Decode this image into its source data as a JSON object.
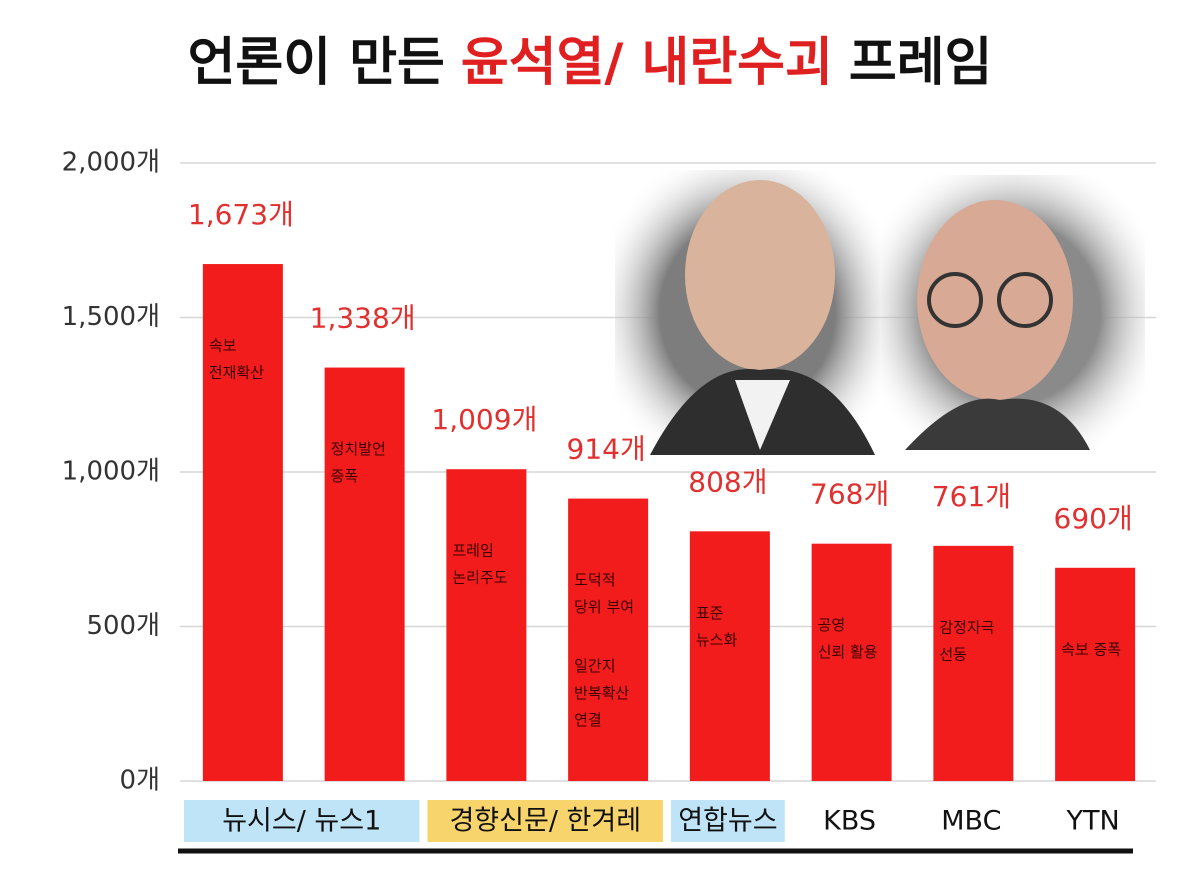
{
  "chart_data": {
    "type": "bar",
    "title_segments": [
      {
        "text": "언론이 만든",
        "color": "#111111"
      },
      {
        "text": "윤석열/ 내란수괴",
        "color": "#e02020"
      },
      {
        "text": "프레임",
        "color": "#111111"
      }
    ],
    "categories": [
      "뉴시스/ 뉴스1",
      null,
      "경향신문/ 한겨레",
      null,
      "연합뉴스",
      "KBS",
      "MBC",
      "YTN"
    ],
    "category_highlights": [
      "#bfe3f7",
      null,
      "#f8d46c",
      null,
      "#bfe3f7",
      null,
      null,
      null
    ],
    "values": [
      1673,
      1338,
      1009,
      914,
      808,
      768,
      761,
      690
    ],
    "value_labels": [
      "1,673개",
      "1,338개",
      "1,009개",
      "914개",
      "808개",
      "768개",
      "761개",
      "690개"
    ],
    "bar_notes": [
      [
        [
          "속보",
          "전재확산"
        ]
      ],
      [
        [
          "정치발언",
          "증폭"
        ]
      ],
      [
        [
          "프레임",
          "논리주도"
        ]
      ],
      [
        [
          "도덕적",
          "당위 부여"
        ],
        [
          "일간지",
          "반복확산",
          "연결"
        ]
      ],
      [
        [
          "표준",
          "뉴스화"
        ]
      ],
      [
        [
          "공영",
          "신뢰 활용"
        ]
      ],
      [
        [
          "감정자극",
          "선동"
        ]
      ],
      [
        [
          "속보 증폭"
        ]
      ]
    ],
    "color": "#f21c1c",
    "value_label_color": "#e03030",
    "ylim": [
      0,
      2000
    ],
    "yticks": [
      {
        "value": 0,
        "label": "0개"
      },
      {
        "value": 500,
        "label": "500개"
      },
      {
        "value": 1000,
        "label": "1,000개"
      },
      {
        "value": 1500,
        "label": "1,500개"
      },
      {
        "value": 2000,
        "label": "2,000개"
      }
    ],
    "grid": true
  }
}
